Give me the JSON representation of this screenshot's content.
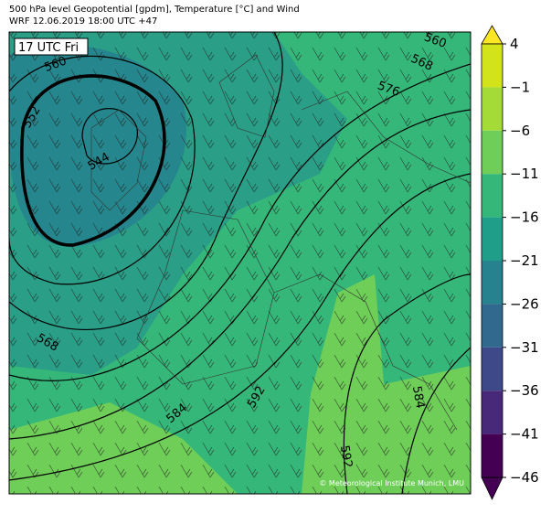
{
  "header": {
    "title": "500 hPa level Geopotential [gpdm], Temperature [°C] and Wind",
    "subtitle": "WRF 12.06.2019 18:00 UTC +47"
  },
  "map": {
    "time_label": "17 UTC Fri",
    "contour_labels": [
      "560",
      "552",
      "544",
      "560",
      "568",
      "576",
      "568",
      "584",
      "592",
      "584",
      "592"
    ],
    "credit": "© Meteorological Institute Munich, LMU"
  },
  "colorbar": {
    "ticks": [
      {
        "value": 4,
        "label": "4"
      },
      {
        "value": -1,
        "label": "−1"
      },
      {
        "value": -6,
        "label": "−6"
      },
      {
        "value": -11,
        "label": "−11"
      },
      {
        "value": -16,
        "label": "−16"
      },
      {
        "value": -21,
        "label": "−21"
      },
      {
        "value": -26,
        "label": "−26"
      },
      {
        "value": -31,
        "label": "−31"
      },
      {
        "value": -36,
        "label": "−36"
      },
      {
        "value": -41,
        "label": "−41"
      },
      {
        "value": -46,
        "label": "−46"
      }
    ],
    "colors": [
      "#fde725",
      "#d2e21b",
      "#a5db36",
      "#6ece58",
      "#35b779",
      "#1f9e89",
      "#26828e",
      "#31688e",
      "#3e4989",
      "#482878",
      "#440154",
      "#440154"
    ]
  }
}
